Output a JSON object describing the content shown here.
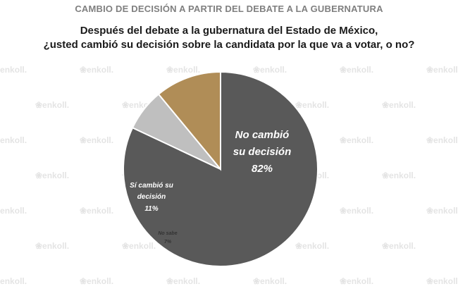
{
  "header": {
    "title": "CAMBIO DE DECISIÓN A PARTIR DEL DEBATE A LA GUBERNATURA",
    "question_line1": "Después del debate a la gubernatura del Estado de México,",
    "question_line2": "¿usted cambió su decisión sobre la candidata por la que va a votar, o no?"
  },
  "watermark": {
    "text": "enkoll."
  },
  "colors": {
    "no_cambio": "#595959",
    "si_cambio": "#b08d57",
    "no_sabe": "#bfbfbf",
    "header_gray": "#7f7f7f"
  },
  "chart_data": {
    "type": "pie",
    "title": "CAMBIO DE DECISIÓN A PARTIR DEL DEBATE A LA GUBERNATURA",
    "slices": [
      {
        "label_line1": "No cambió",
        "label_line2": "su decisión",
        "value_text": "82%",
        "value": 82
      },
      {
        "label_line1": "Sí cambió su",
        "label_line2": "decisión",
        "value_text": "11%",
        "value": 11
      },
      {
        "label_line1": "No sabe",
        "label_line2": "",
        "value_text": "7%",
        "value": 7
      }
    ]
  }
}
